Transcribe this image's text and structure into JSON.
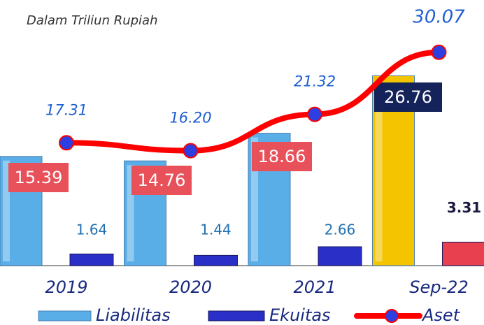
{
  "chart_data": {
    "type": "bar-line",
    "subtitle": "Dalam Triliun Rupiah",
    "categories": [
      "2019",
      "2020",
      "2021",
      "Sep-22"
    ],
    "series": [
      {
        "name": "Liabilitas",
        "type": "bar",
        "color": "#5aaee8",
        "colors": [
          "#5aaee8",
          "#5aaee8",
          "#5aaee8",
          "#f5c400"
        ],
        "values": [
          15.39,
          14.76,
          18.66,
          26.76
        ],
        "value_labels": [
          "15.39",
          "14.76",
          "18.66",
          "26.76"
        ]
      },
      {
        "name": "Ekuitas",
        "type": "bar",
        "color": "#2a2fc8",
        "colors": [
          "#2a2fc8",
          "#2a2fc8",
          "#2a2fc8",
          "#e8404f"
        ],
        "values": [
          1.64,
          1.44,
          2.66,
          3.31
        ],
        "value_labels": [
          "1.64",
          "1.44",
          "2.66",
          "3.31"
        ]
      },
      {
        "name": "Aset",
        "type": "line",
        "color": "#ff0000",
        "marker_color": "#2d3fe0",
        "values": [
          17.31,
          16.2,
          21.32,
          30.07
        ],
        "value_labels": [
          "17.31",
          "16.20",
          "21.32",
          "30.07"
        ]
      }
    ]
  }
}
